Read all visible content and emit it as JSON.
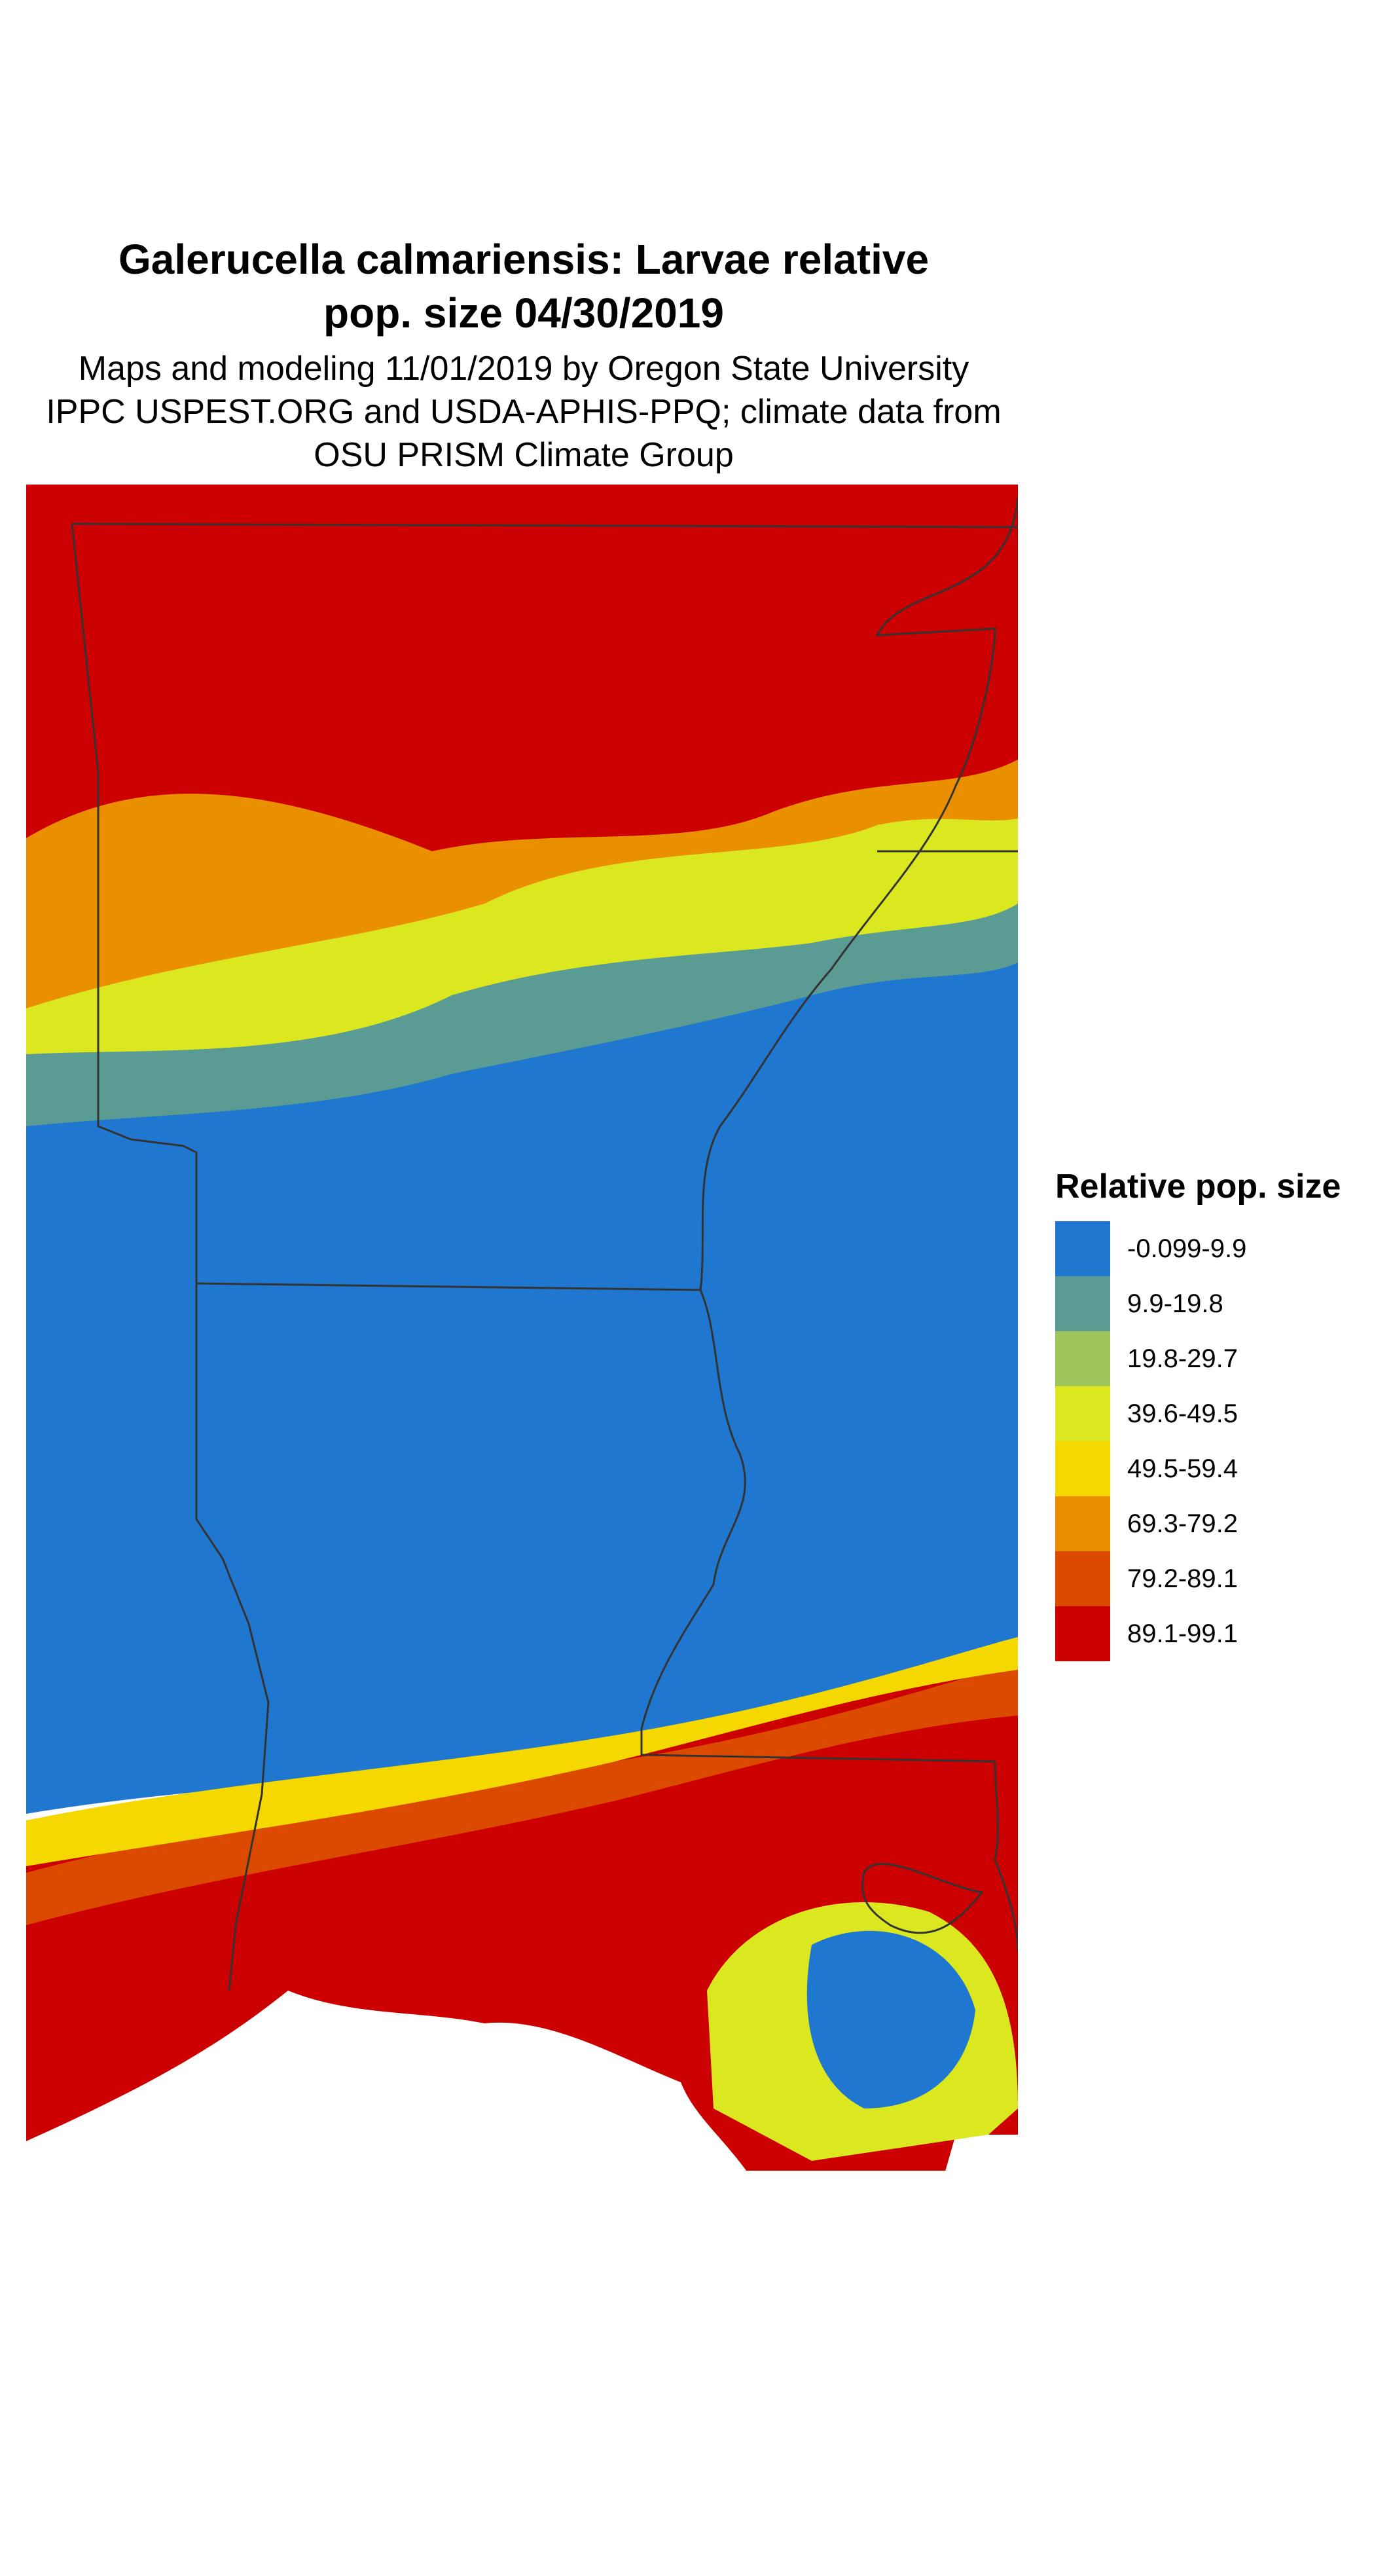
{
  "title_line1": "Galerucella calmariensis: Larvae relative",
  "title_line2": "pop. size 04/30/2019",
  "subtitle_line1": "Maps and modeling 11/01/2019 by Oregon State University",
  "subtitle_line2": "IPPC USPEST.ORG and USDA-APHIS-PPQ; climate data from",
  "subtitle_line3": "OSU PRISM Climate Group",
  "legend": {
    "title": "Relative pop. size",
    "items": [
      {
        "label": "-0.099-9.9",
        "color": "#1f77d0"
      },
      {
        "label": "9.9-19.8",
        "color": "#5a9b94"
      },
      {
        "label": "19.8-29.7",
        "color": "#9dc35b"
      },
      {
        "label": "39.6-49.5",
        "color": "#dbe81f"
      },
      {
        "label": "49.5-59.4",
        "color": "#f5d800"
      },
      {
        "label": "69.3-79.2",
        "color": "#ea8f00"
      },
      {
        "label": "79.2-89.1",
        "color": "#dc4a00"
      },
      {
        "label": "89.1-99.1",
        "color": "#cc0000"
      }
    ]
  }
}
